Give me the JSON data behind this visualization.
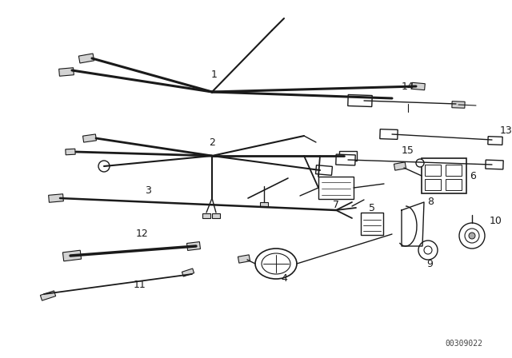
{
  "background_color": "#ffffff",
  "line_color": "#1a1a1a",
  "watermark": "00309022",
  "fig_w": 6.4,
  "fig_h": 4.48,
  "dpi": 100
}
